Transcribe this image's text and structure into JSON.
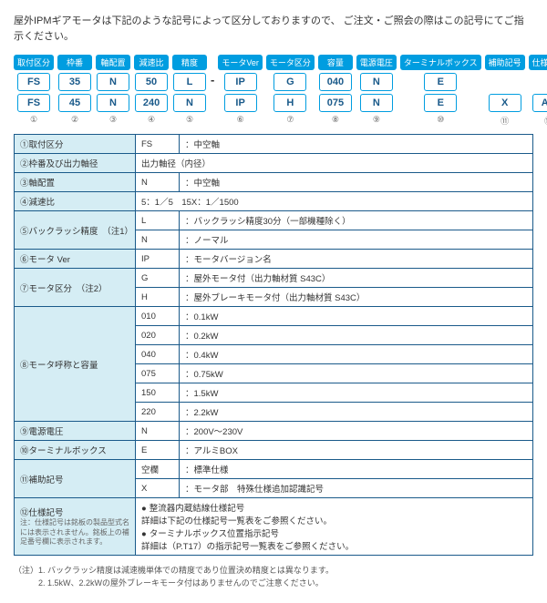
{
  "intro": "屋外IPMギアモータは下記のような記号によって区分しておりますので、\nご注文・ご照会の際はこの記号にてご指示ください。",
  "colors": {
    "accent": "#009de0",
    "border": "#1a5a8a",
    "labelBg": "#d5edf4"
  },
  "headers": [
    "取付区分",
    "枠番",
    "軸配置",
    "減速比",
    "精度",
    "モータVer",
    "モータ区分",
    "容量",
    "電源電圧",
    "ターミナルボックス",
    "補助記号",
    "仕様記号"
  ],
  "row1": [
    "FS",
    "35",
    "N",
    "50",
    "L",
    "IP",
    "G",
    "040",
    "N",
    "E",
    "",
    ""
  ],
  "row2": [
    "FS",
    "45",
    "N",
    "240",
    "N",
    "IP",
    "H",
    "075",
    "N",
    "E",
    "X",
    "AA"
  ],
  "idx": [
    "①",
    "②",
    "③",
    "④",
    "⑤",
    "⑥",
    "⑦",
    "⑧",
    "⑨",
    "⑩",
    "⑪",
    "⑫"
  ],
  "sepAfter": 5,
  "spec": [
    {
      "label": "①取付区分",
      "rows": [
        [
          "FS",
          "：中空軸"
        ]
      ]
    },
    {
      "label": "②枠番及び出力軸径",
      "rows": [
        [
          "",
          "出力軸径（内径）"
        ]
      ]
    },
    {
      "label": "③軸配置",
      "rows": [
        [
          "N",
          "：中空軸"
        ]
      ]
    },
    {
      "label": "④減速比",
      "rows": [
        [
          "",
          "5：1／5　15X：1／1500"
        ]
      ]
    },
    {
      "label": "⑤バックラッシ精度　（注1）",
      "rows": [
        [
          "L",
          "：バックラッシ精度30分（一部機種除く）"
        ],
        [
          "N",
          "：ノーマル"
        ]
      ]
    },
    {
      "label": "⑥モータ Ver",
      "rows": [
        [
          "IP",
          "：モータバージョン名"
        ]
      ]
    },
    {
      "label": "⑦モータ区分　（注2）",
      "rows": [
        [
          "G",
          "：屋外モータ付（出力軸材質 S43C）"
        ],
        [
          "H",
          "：屋外ブレーキモータ付（出力軸材質 S43C）"
        ]
      ]
    },
    {
      "label": "⑧モータ呼称と容量",
      "rows": [
        [
          "010",
          "：0.1kW"
        ],
        [
          "020",
          "：0.2kW"
        ],
        [
          "040",
          "：0.4kW"
        ],
        [
          "075",
          "：0.75kW"
        ],
        [
          "150",
          "：1.5kW"
        ],
        [
          "220",
          "：2.2kW"
        ]
      ]
    },
    {
      "label": "⑨電源電圧",
      "rows": [
        [
          "N",
          "：200V～230V"
        ]
      ]
    },
    {
      "label": "⑩ターミナルボックス",
      "rows": [
        [
          "E",
          "：アルミBOX"
        ]
      ]
    },
    {
      "label": "⑪補助記号",
      "rows": [
        [
          "空欄",
          "：標準仕様"
        ],
        [
          "X",
          "：モータ部　特殊仕様追加認識記号"
        ]
      ]
    },
    {
      "label": "⑫仕様記号",
      "note": "注：仕様記号は銘板の製品型式名には表示されません。銘板上の補足番号欄に表示されます。",
      "bullets": [
        "整流器内蔵結線仕様記号\n詳細は下記の仕様記号一覧表をご参照ください。",
        "ターミナルボックス位置指示記号\n詳細は（P.T17）の指示記号一覧表をご参照ください。"
      ]
    }
  ],
  "footnotes": [
    "（注）1. バックラッシ精度は減速機単体での精度であり位置決め精度とは異なります。",
    "　　　2. 1.5kW、2.2kWの屋外ブレーキモータ付はありませんのでご注意ください。"
  ]
}
